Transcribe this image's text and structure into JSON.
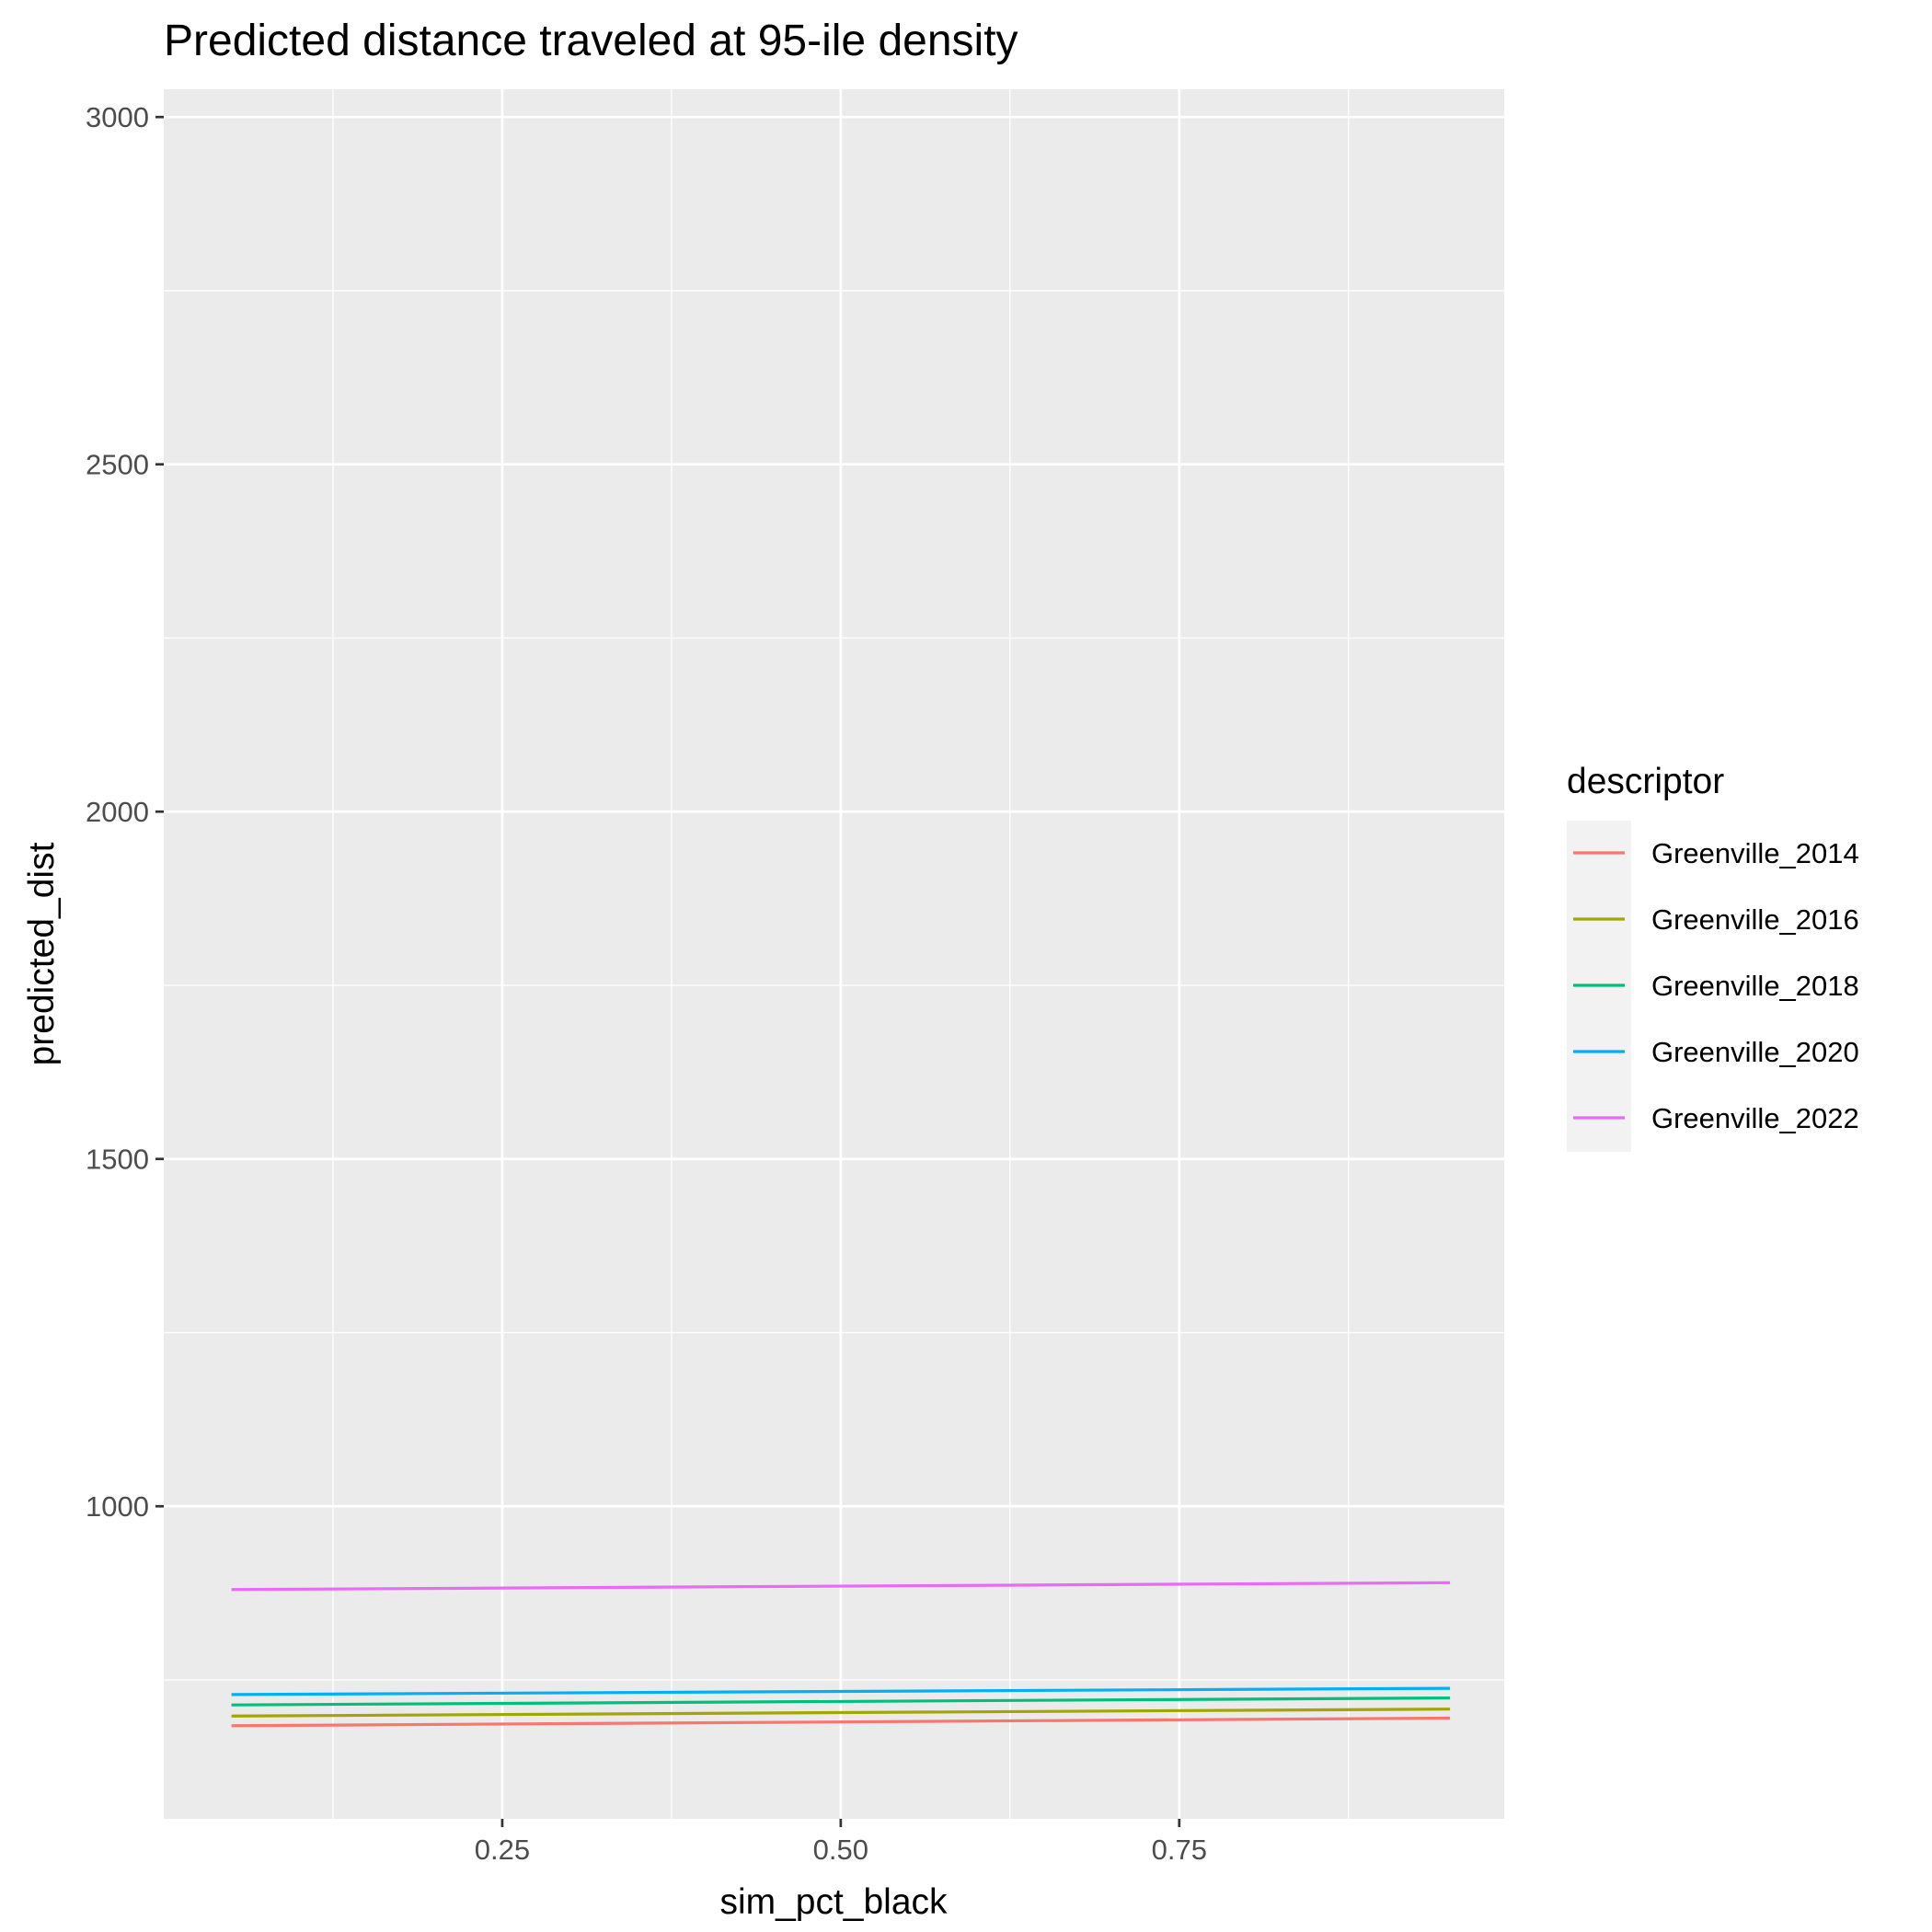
{
  "chart_data": {
    "type": "line",
    "title": "Predicted distance traveled at 95-ile density",
    "xlabel": "sim_pct_black",
    "ylabel": "predicted_dist",
    "xlim": [
      0.0,
      0.99
    ],
    "ylim": [
      550,
      3040
    ],
    "x_ticks": [
      0.25,
      0.5,
      0.75
    ],
    "x_tick_labels": [
      "0.25",
      "0.50",
      "0.75"
    ],
    "x_minor_ticks": [
      0.125,
      0.375,
      0.625,
      0.875
    ],
    "y_ticks": [
      1000,
      1500,
      2000,
      2500,
      3000
    ],
    "y_tick_labels": [
      "1000",
      "1500",
      "2000",
      "2500",
      "3000"
    ],
    "y_minor_ticks": [
      750,
      1250,
      1750,
      2250,
      2750
    ],
    "grid": true,
    "background": "#ebebeb",
    "legend": {
      "title": "descriptor",
      "position": "right"
    },
    "series": [
      {
        "name": "Greenville_2014",
        "color": "#F8766D",
        "x": [
          0.05,
          0.95
        ],
        "y": [
          684,
          695
        ]
      },
      {
        "name": "Greenville_2016",
        "color": "#A3A500",
        "x": [
          0.05,
          0.95
        ],
        "y": [
          698,
          708
        ]
      },
      {
        "name": "Greenville_2018",
        "color": "#00BF7D",
        "x": [
          0.05,
          0.95
        ],
        "y": [
          714,
          724
        ]
      },
      {
        "name": "Greenville_2020",
        "color": "#00B0F6",
        "x": [
          0.05,
          0.95
        ],
        "y": [
          729,
          738
        ]
      },
      {
        "name": "Greenville_2022",
        "color": "#E76BF3",
        "x": [
          0.05,
          0.95
        ],
        "y": [
          880,
          890
        ]
      }
    ]
  }
}
